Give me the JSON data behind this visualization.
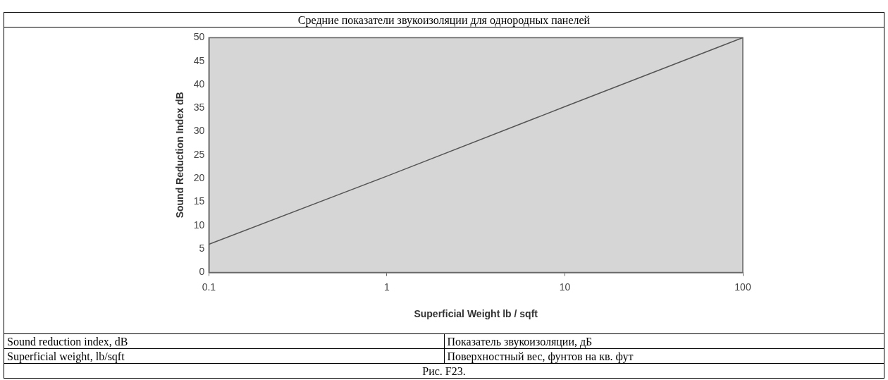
{
  "chart_data": {
    "type": "line",
    "title": "Средние показатели звукоизоляции для однородных панелей",
    "xlabel": "Superficial Weight lb / sqft",
    "ylabel": "Sound Reduction Index dB",
    "x": [
      0.1,
      1,
      10,
      100
    ],
    "series": [
      {
        "color": "#555555",
        "values": [
          6,
          20.5,
          35.3,
          50
        ]
      }
    ],
    "log": "x",
    "xlim": [
      0.1,
      100
    ],
    "xticks": [
      0.1,
      1,
      10,
      100
    ],
    "ylim": [
      0,
      50
    ],
    "yticks": [
      0,
      5,
      10,
      15,
      20,
      25,
      30,
      35,
      40,
      45,
      50
    ],
    "grid": false,
    "legend": false,
    "marker": "none",
    "line_style": "solid",
    "annotations": [
      "Sound reduction index, dB",
      "Показатель звукоизоляции, дБ",
      "Superficial weight, lb/sqft",
      "Поверхностный вес, фунтов на кв. фут",
      "Рис. F23."
    ]
  }
}
